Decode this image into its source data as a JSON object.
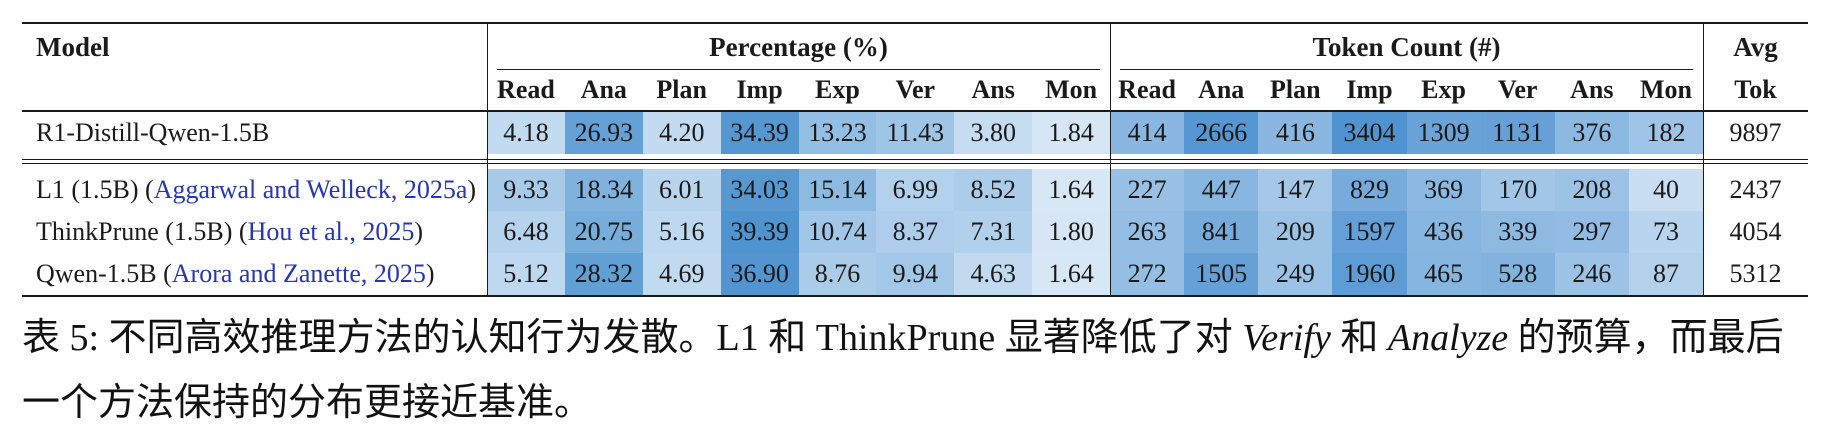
{
  "table": {
    "header": {
      "model": "Model",
      "groups": [
        {
          "label": "Percentage (%)"
        },
        {
          "label": "Token Count (#)"
        }
      ],
      "subcols": [
        "Read",
        "Ana",
        "Plan",
        "Imp",
        "Exp",
        "Ver",
        "Ans",
        "Mon"
      ],
      "avg_top": "Avg",
      "avg_bottom": "Tok"
    },
    "rows": [
      {
        "group": "baseline",
        "model": [
          {
            "text": "R1-Distill-Qwen-1.5B",
            "cite": false
          }
        ],
        "pct": [
          {
            "v": "4.18",
            "bg": "#c3dbf0"
          },
          {
            "v": "26.93",
            "bg": "#64a1d6"
          },
          {
            "v": "4.20",
            "bg": "#c3dbf0"
          },
          {
            "v": "34.39",
            "bg": "#5797d1"
          },
          {
            "v": "13.23",
            "bg": "#94bfe4"
          },
          {
            "v": "11.43",
            "bg": "#9ec5e6"
          },
          {
            "v": "3.80",
            "bg": "#c6ddf1"
          },
          {
            "v": "1.84",
            "bg": "#d6e6f5"
          }
        ],
        "tok": [
          {
            "v": "414",
            "bg": "#89b7e1"
          },
          {
            "v": "2666",
            "bg": "#5697d3"
          },
          {
            "v": "416",
            "bg": "#89b7e1"
          },
          {
            "v": "3404",
            "bg": "#4f93d1"
          },
          {
            "v": "1309",
            "bg": "#69a3d8"
          },
          {
            "v": "1131",
            "bg": "#67a0d6"
          },
          {
            "v": "376",
            "bg": "#8cb9e2"
          },
          {
            "v": "182",
            "bg": "#9fc4e7"
          }
        ],
        "avg": "9897"
      },
      {
        "group": "method",
        "model": [
          {
            "text": "L1 (1.5B) (",
            "cite": false
          },
          {
            "text": "Aggarwal and Welleck, 2025a",
            "cite": true
          },
          {
            "text": ")",
            "cite": false
          }
        ],
        "pct": [
          {
            "v": "9.33",
            "bg": "#a8cae9"
          },
          {
            "v": "18.34",
            "bg": "#7fb2dd"
          },
          {
            "v": "6.01",
            "bg": "#b9d5ee"
          },
          {
            "v": "34.03",
            "bg": "#5798d1"
          },
          {
            "v": "15.14",
            "bg": "#8cbae1"
          },
          {
            "v": "6.99",
            "bg": "#b2d1ec"
          },
          {
            "v": "8.52",
            "bg": "#accdea"
          },
          {
            "v": "1.64",
            "bg": "#d8e7f6"
          }
        ],
        "tok": [
          {
            "v": "227",
            "bg": "#99c1e5"
          },
          {
            "v": "447",
            "bg": "#87b6e0"
          },
          {
            "v": "147",
            "bg": "#a5c8e8"
          },
          {
            "v": "829",
            "bg": "#76abdb"
          },
          {
            "v": "369",
            "bg": "#8cb9e2"
          },
          {
            "v": "170",
            "bg": "#a1c6e7"
          },
          {
            "v": "208",
            "bg": "#9cc2e6"
          },
          {
            "v": "40",
            "bg": "#c9def2"
          }
        ],
        "avg": "2437"
      },
      {
        "group": "method",
        "model": [
          {
            "text": "ThinkPrune (1.5B) (",
            "cite": false
          },
          {
            "text": "Hou et al., 2025",
            "cite": true
          },
          {
            "text": ")",
            "cite": false
          }
        ],
        "pct": [
          {
            "v": "6.48",
            "bg": "#b6d3ed"
          },
          {
            "v": "20.75",
            "bg": "#77addb"
          },
          {
            "v": "5.16",
            "bg": "#bed8ef"
          },
          {
            "v": "39.39",
            "bg": "#4f93cf"
          },
          {
            "v": "10.74",
            "bg": "#a1c6e7"
          },
          {
            "v": "8.37",
            "bg": "#adcdea"
          },
          {
            "v": "7.31",
            "bg": "#b0d0eb"
          },
          {
            "v": "1.80",
            "bg": "#d6e6f5"
          }
        ],
        "tok": [
          {
            "v": "263",
            "bg": "#95bee4"
          },
          {
            "v": "841",
            "bg": "#76abdb"
          },
          {
            "v": "209",
            "bg": "#9cc2e6"
          },
          {
            "v": "1597",
            "bg": "#64a0d7"
          },
          {
            "v": "436",
            "bg": "#87b6e0"
          },
          {
            "v": "339",
            "bg": "#8ebae2"
          },
          {
            "v": "297",
            "bg": "#92bce3"
          },
          {
            "v": "73",
            "bg": "#b9d4ee"
          }
        ],
        "avg": "4054"
      },
      {
        "group": "method",
        "model": [
          {
            "text": "Qwen-1.5B (",
            "cite": false
          },
          {
            "text": "Arora and Zanette, 2025",
            "cite": true
          },
          {
            "text": ")",
            "cite": false
          }
        ],
        "pct": [
          {
            "v": "5.12",
            "bg": "#bed8ef"
          },
          {
            "v": "28.32",
            "bg": "#61a0d5"
          },
          {
            "v": "4.69",
            "bg": "#c1daf0"
          },
          {
            "v": "36.90",
            "bg": "#5395d0"
          },
          {
            "v": "8.76",
            "bg": "#abcce9"
          },
          {
            "v": "9.94",
            "bg": "#a3c7e7"
          },
          {
            "v": "4.63",
            "bg": "#c1daf0"
          },
          {
            "v": "1.64",
            "bg": "#d8e7f6"
          }
        ],
        "tok": [
          {
            "v": "272",
            "bg": "#94bee4"
          },
          {
            "v": "1505",
            "bg": "#65a1d7"
          },
          {
            "v": "249",
            "bg": "#9cc2e5"
          },
          {
            "v": "1960",
            "bg": "#5e9cd5"
          },
          {
            "v": "465",
            "bg": "#86b5e0"
          },
          {
            "v": "528",
            "bg": "#82b3df"
          },
          {
            "v": "246",
            "bg": "#9cc2e5"
          },
          {
            "v": "87",
            "bg": "#b4d1ec"
          }
        ],
        "avg": "5312"
      }
    ]
  },
  "caption": {
    "segments": [
      {
        "text": "表 5: 不同高效推理方法的认知行为发散。L1 和 ThinkPrune 显著降低了对 ",
        "italic": false
      },
      {
        "text": "Verify",
        "italic": true
      },
      {
        "text": " 和 ",
        "italic": false
      },
      {
        "text": "Analyze",
        "italic": true
      },
      {
        "text": " 的预算，而最后一个方法保持的分布更接近基准。",
        "italic": false
      }
    ]
  },
  "colors": {
    "citation": "#2636b4",
    "rule": "#1a1a1a",
    "heatmap_light": "#d8e7f6",
    "heatmap_dark": "#4f93cf"
  }
}
